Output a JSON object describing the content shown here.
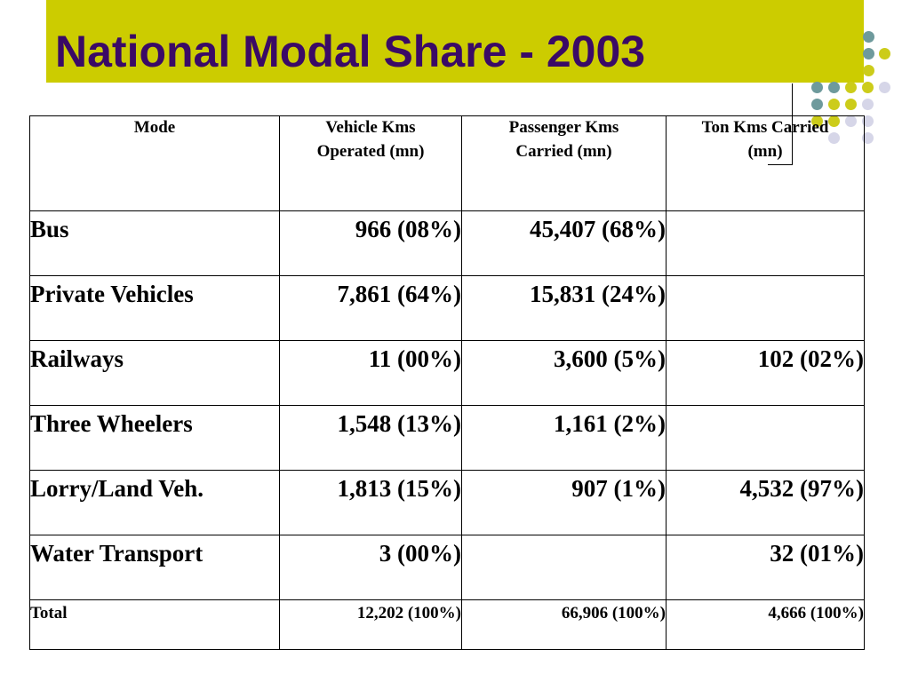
{
  "slide": {
    "title": "National Modal Share - 2003"
  },
  "colors": {
    "title_bar": "#cccc00",
    "title_text": "#3a0a66",
    "dot_teal": "#6e9a9c",
    "dot_olive": "#cccc1a",
    "dot_lavender": "#d6d6e8"
  },
  "table": {
    "columns": [
      {
        "line1": "Mode",
        "line2": ""
      },
      {
        "line1": "Vehicle Kms",
        "line2": "Operated (mn)"
      },
      {
        "line1": "Passenger Kms",
        "line2": "Carried (mn)"
      },
      {
        "line1": "Ton Kms Carried",
        "line2": "(mn)"
      }
    ],
    "rows": [
      {
        "mode": "Bus",
        "vehicle_kms": "966 (08%)",
        "passenger_kms": "45,407 (68%)",
        "ton_kms": ""
      },
      {
        "mode": "Private Vehicles",
        "vehicle_kms": "7,861 (64%)",
        "passenger_kms": "15,831 (24%)",
        "ton_kms": ""
      },
      {
        "mode": "Railways",
        "vehicle_kms": "11 (00%)",
        "passenger_kms": "3,600 (5%)",
        "ton_kms": "102 (02%)"
      },
      {
        "mode": "Three Wheelers",
        "vehicle_kms": "1,548 (13%)",
        "passenger_kms": "1,161 (2%)",
        "ton_kms": ""
      },
      {
        "mode": "Lorry/Land Veh.",
        "vehicle_kms": "1,813 (15%)",
        "passenger_kms": "907 (1%)",
        "ton_kms": "4,532 (97%)"
      },
      {
        "mode": "Water Transport",
        "vehicle_kms": "3 (00%)",
        "passenger_kms": "",
        "ton_kms": "32 (01%)"
      }
    ],
    "total": {
      "mode": "Total",
      "vehicle_kms": "12,202 (100%)",
      "passenger_kms": "66,906 (100%)",
      "ton_kms": "4,666 (100%)"
    }
  }
}
